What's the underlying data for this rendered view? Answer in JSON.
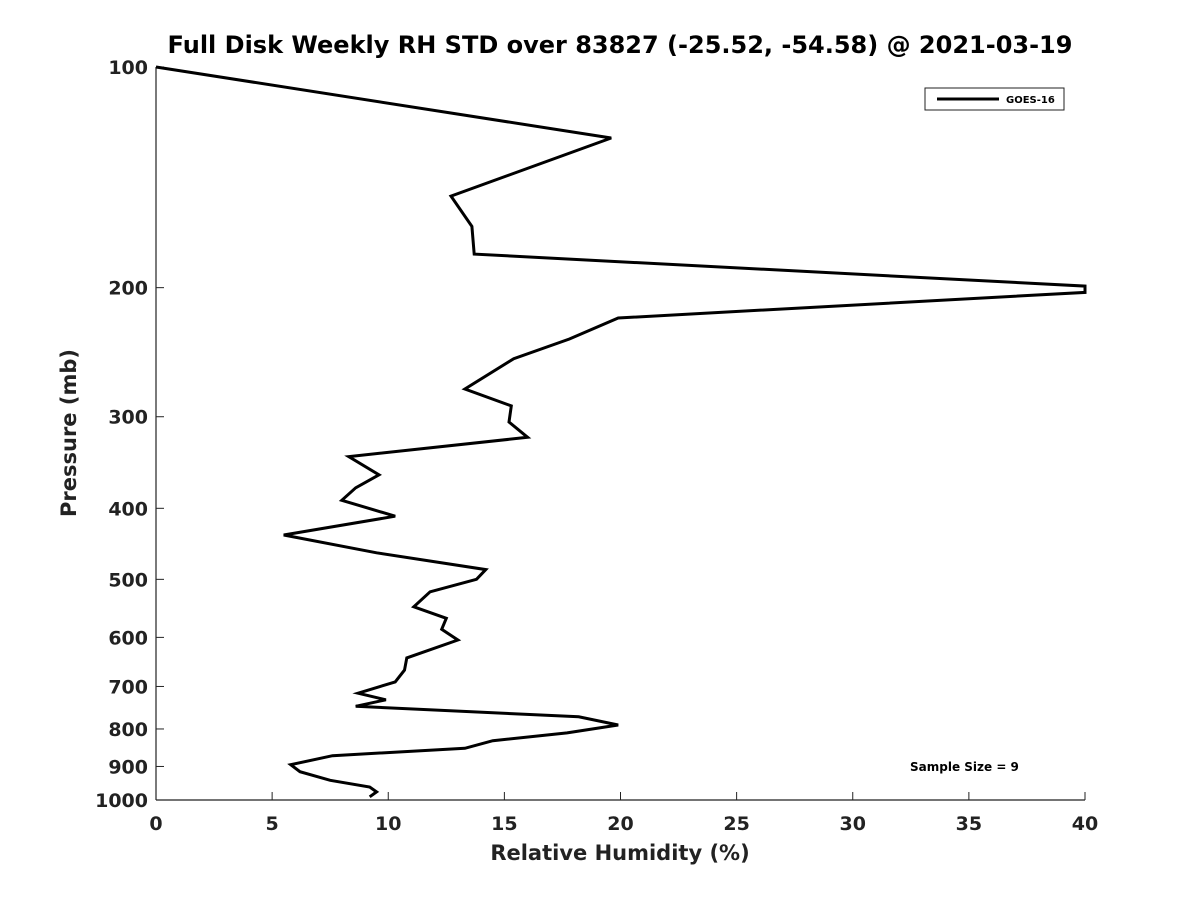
{
  "chart_data": {
    "type": "line",
    "title": "Full Disk Weekly RH STD over 83827 (-25.52, -54.58) @ 2021-03-19",
    "xlabel": "Relative Humidity (%)",
    "ylabel": "Pressure (mb)",
    "xlim": [
      0,
      40
    ],
    "ylim": [
      100,
      1000
    ],
    "y_scale": "log",
    "y_reversed": true,
    "grid": false,
    "legend_position": "top-right",
    "x_ticks": [
      0,
      5,
      10,
      15,
      20,
      25,
      30,
      35,
      40
    ],
    "x_tick_labels": [
      "0",
      "5",
      "10",
      "15",
      "20",
      "25",
      "30",
      "35",
      "40"
    ],
    "y_ticks": [
      100,
      200,
      300,
      400,
      500,
      600,
      700,
      800,
      900,
      1000
    ],
    "y_tick_labels": [
      "100",
      "200",
      "300",
      "400",
      "500",
      "600",
      "700",
      "800",
      "900",
      "1000"
    ],
    "series": [
      {
        "name": "GOES-16",
        "color": "#000000",
        "x": [
          0.0,
          19.6,
          12.7,
          13.6,
          13.7,
          40.0,
          40.0,
          19.9,
          17.8,
          15.4,
          13.3,
          15.3,
          15.2,
          16.0,
          8.3,
          9.6,
          8.6,
          8.0,
          10.3,
          5.5,
          9.5,
          14.2,
          13.8,
          11.8,
          11.1,
          12.5,
          12.3,
          13.0,
          10.8,
          10.7,
          10.3,
          8.7,
          9.9,
          8.6,
          18.2,
          19.9,
          17.7,
          14.5,
          13.3,
          7.6,
          5.8,
          6.2,
          7.5,
          9.2,
          9.5,
          9.2
        ],
        "y": [
          100,
          125,
          150,
          165,
          180,
          199,
          203,
          220,
          235,
          250,
          275,
          290,
          305,
          320,
          340,
          360,
          375,
          390,
          410,
          435,
          460,
          485,
          500,
          520,
          545,
          565,
          585,
          605,
          640,
          665,
          690,
          715,
          730,
          745,
          770,
          790,
          810,
          830,
          850,
          870,
          895,
          915,
          940,
          960,
          975,
          990
        ]
      }
    ],
    "annotations": [
      "Sample Size = 9"
    ]
  }
}
